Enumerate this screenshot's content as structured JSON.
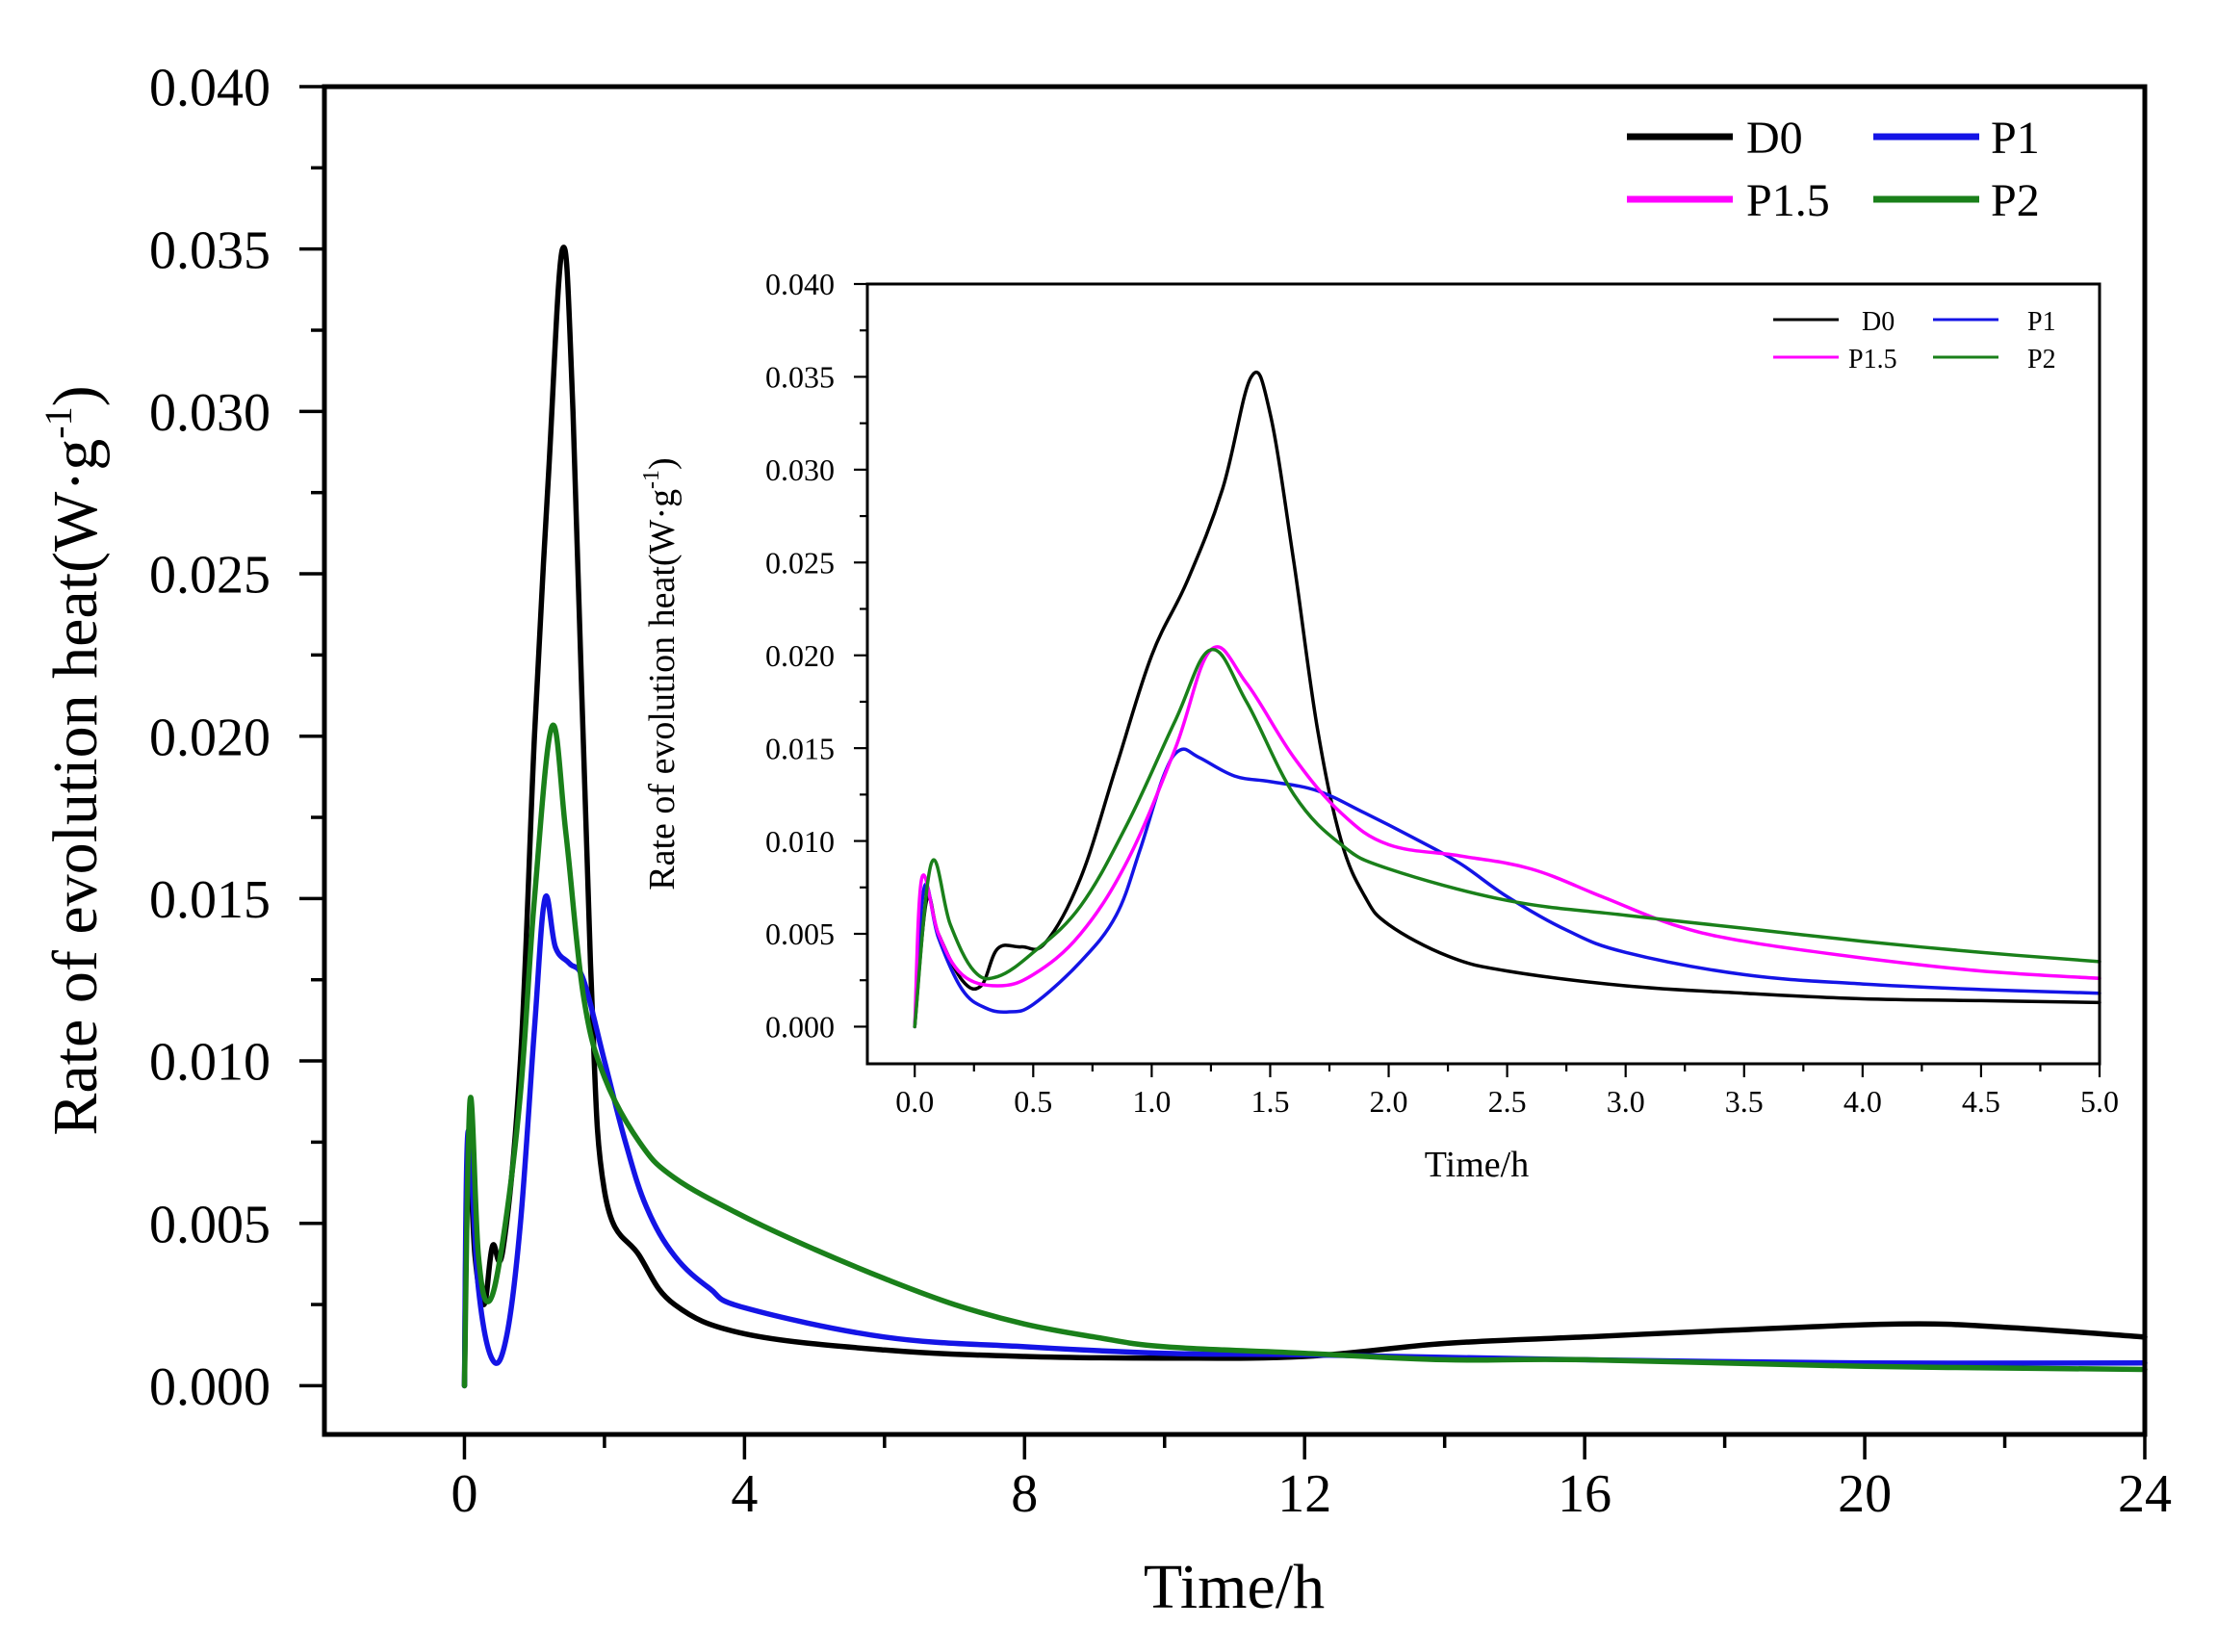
{
  "colors": {
    "D0": "#000000",
    "P1": "#1414e6",
    "P1.5": "#ff00ff",
    "P2": "#1a801a"
  },
  "main": {
    "xlabel": "Time/h",
    "ylabel_text": "Rate of evolution heat(W·g",
    "ylabel_sup": "-1",
    "ylabel_close": ")"
  },
  "inset": {
    "xlabel": "Time/h",
    "ylabel_text": "Rate of evolution heat(W·g",
    "ylabel_sup": "-1",
    "ylabel_close": ")"
  },
  "chart_data": [
    {
      "id": "main",
      "type": "line",
      "xlabel": "Time/h",
      "ylabel": "Rate of evolution heat(W·g-1)",
      "xlim": [
        -2.0,
        24
      ],
      "ylim": [
        -0.0015,
        0.04
      ],
      "xticks": [
        0,
        4,
        8,
        12,
        16,
        20,
        24
      ],
      "xtick_labels": [
        "0",
        "4",
        "8",
        "12",
        "16",
        "20",
        "24"
      ],
      "yticks": [
        0.0,
        0.005,
        0.01,
        0.015,
        0.02,
        0.025,
        0.03,
        0.035,
        0.04
      ],
      "ytick_labels": [
        "0.000",
        "0.005",
        "0.010",
        "0.015",
        "0.020",
        "0.025",
        "0.030",
        "0.035",
        "0.040"
      ],
      "legend": {
        "position": "top-right",
        "entries": [
          {
            "label": "D0",
            "series": "D0"
          },
          {
            "label": "P1",
            "series": "P1"
          },
          {
            "label": "P1.5",
            "series": "P1.5"
          },
          {
            "label": "P2",
            "series": "P2"
          }
        ]
      },
      "series": [
        {
          "name": "D0",
          "points": [
            [
              0,
              0
            ],
            [
              0.05,
              0.0075
            ],
            [
              0.15,
              0.004
            ],
            [
              0.28,
              0.0025
            ],
            [
              0.4,
              0.0043
            ],
            [
              0.55,
              0.0042
            ],
            [
              0.8,
              0.01
            ],
            [
              1.0,
              0.02
            ],
            [
              1.2,
              0.028
            ],
            [
              1.4,
              0.035
            ],
            [
              1.55,
              0.03
            ],
            [
              1.8,
              0.013
            ],
            [
              2.0,
              0.006
            ],
            [
              2.5,
              0.004
            ],
            [
              3.0,
              0.0025
            ],
            [
              4.0,
              0.0016
            ],
            [
              6.0,
              0.0011
            ],
            [
              8.0,
              0.0009
            ],
            [
              10.0,
              0.00085
            ],
            [
              12.0,
              0.0009
            ],
            [
              14.0,
              0.0013
            ],
            [
              16.0,
              0.0015
            ],
            [
              18.0,
              0.0017
            ],
            [
              20.5,
              0.0019
            ],
            [
              22.0,
              0.0018
            ],
            [
              24.0,
              0.0015
            ]
          ]
        },
        {
          "name": "P1",
          "points": [
            [
              0,
              0
            ],
            [
              0.05,
              0.0078
            ],
            [
              0.2,
              0.003
            ],
            [
              0.4,
              0.0008
            ],
            [
              0.6,
              0.0015
            ],
            [
              0.8,
              0.005
            ],
            [
              1.0,
              0.011
            ],
            [
              1.15,
              0.015
            ],
            [
              1.3,
              0.0135
            ],
            [
              1.5,
              0.013
            ],
            [
              1.7,
              0.0125
            ],
            [
              2.0,
              0.01
            ],
            [
              2.3,
              0.0075
            ],
            [
              2.6,
              0.0055
            ],
            [
              3.0,
              0.004
            ],
            [
              3.5,
              0.003
            ],
            [
              4.0,
              0.0024
            ],
            [
              6.0,
              0.0015
            ],
            [
              8.0,
              0.0012
            ],
            [
              10.0,
              0.001
            ],
            [
              12.0,
              0.00095
            ],
            [
              16.0,
              0.0008
            ],
            [
              20.0,
              0.0007
            ],
            [
              24.0,
              0.0007
            ]
          ]
        },
        {
          "name": "P2",
          "points": [
            [
              0,
              0
            ],
            [
              0.08,
              0.0088
            ],
            [
              0.2,
              0.004
            ],
            [
              0.35,
              0.0026
            ],
            [
              0.55,
              0.0045
            ],
            [
              0.8,
              0.009
            ],
            [
              1.0,
              0.015
            ],
            [
              1.25,
              0.0203
            ],
            [
              1.45,
              0.017
            ],
            [
              1.7,
              0.012
            ],
            [
              2.0,
              0.0095
            ],
            [
              2.5,
              0.0075
            ],
            [
              3.0,
              0.0064
            ],
            [
              4.0,
              0.0052
            ],
            [
              5.0,
              0.0042
            ],
            [
              6.0,
              0.0033
            ],
            [
              7.0,
              0.0025
            ],
            [
              8.0,
              0.0019
            ],
            [
              9.0,
              0.0015
            ],
            [
              10.0,
              0.0012
            ],
            [
              12.0,
              0.001
            ],
            [
              14.0,
              0.0008
            ],
            [
              16.0,
              0.0008
            ],
            [
              20.0,
              0.0006
            ],
            [
              24.0,
              0.0005
            ]
          ]
        }
      ]
    },
    {
      "id": "inset",
      "type": "line",
      "xlabel": "Time/h",
      "ylabel": "Rate of evolution heat(W·g-1)",
      "xlim": [
        -0.2,
        5.0
      ],
      "ylim": [
        -0.002,
        0.04
      ],
      "xticks": [
        0,
        0.5,
        1.0,
        1.5,
        2.0,
        2.5,
        3.0,
        3.5,
        4.0,
        4.5,
        5.0
      ],
      "xtick_labels": [
        "0.0",
        "0.5",
        "1.0",
        "1.5",
        "2.0",
        "2.5",
        "3.0",
        "3.5",
        "4.0",
        "4.5",
        "5.0"
      ],
      "yticks": [
        0.0,
        0.005,
        0.01,
        0.015,
        0.02,
        0.025,
        0.03,
        0.035,
        0.04
      ],
      "ytick_labels": [
        "0.000",
        "0.005",
        "0.010",
        "0.015",
        "0.020",
        "0.025",
        "0.030",
        "0.035",
        "0.040"
      ],
      "legend": {
        "position": "top-right",
        "entries": [
          {
            "label": "D0",
            "series": "D0"
          },
          {
            "label": "P1",
            "series": "P1"
          },
          {
            "label": "P1.5",
            "series": "P1.5"
          },
          {
            "label": "P2",
            "series": "P2"
          }
        ]
      },
      "series": [
        {
          "name": "D0",
          "points": [
            [
              0,
              0
            ],
            [
              0.05,
              0.0068
            ],
            [
              0.1,
              0.005
            ],
            [
              0.2,
              0.0025
            ],
            [
              0.28,
              0.0022
            ],
            [
              0.35,
              0.0042
            ],
            [
              0.45,
              0.0043
            ],
            [
              0.55,
              0.0045
            ],
            [
              0.7,
              0.008
            ],
            [
              0.85,
              0.014
            ],
            [
              1.0,
              0.02
            ],
            [
              1.15,
              0.024
            ],
            [
              1.3,
              0.029
            ],
            [
              1.42,
              0.035
            ],
            [
              1.5,
              0.033
            ],
            [
              1.6,
              0.025
            ],
            [
              1.7,
              0.016
            ],
            [
              1.8,
              0.01
            ],
            [
              1.9,
              0.007
            ],
            [
              2.0,
              0.0055
            ],
            [
              2.25,
              0.0038
            ],
            [
              2.5,
              0.003
            ],
            [
              3.0,
              0.0022
            ],
            [
              3.5,
              0.0018
            ],
            [
              4.0,
              0.0015
            ],
            [
              4.5,
              0.0014
            ],
            [
              5.0,
              0.0013
            ]
          ]
        },
        {
          "name": "P1",
          "points": [
            [
              0,
              0
            ],
            [
              0.04,
              0.0075
            ],
            [
              0.1,
              0.0048
            ],
            [
              0.2,
              0.002
            ],
            [
              0.3,
              0.001
            ],
            [
              0.4,
              0.0008
            ],
            [
              0.5,
              0.0012
            ],
            [
              0.7,
              0.0035
            ],
            [
              0.85,
              0.006
            ],
            [
              0.95,
              0.0095
            ],
            [
              1.05,
              0.0135
            ],
            [
              1.12,
              0.0149
            ],
            [
              1.2,
              0.0145
            ],
            [
              1.35,
              0.0135
            ],
            [
              1.5,
              0.0132
            ],
            [
              1.7,
              0.0127
            ],
            [
              1.9,
              0.0115
            ],
            [
              2.1,
              0.0102
            ],
            [
              2.3,
              0.0088
            ],
            [
              2.5,
              0.007
            ],
            [
              2.75,
              0.0052
            ],
            [
              3.0,
              0.004
            ],
            [
              3.5,
              0.0028
            ],
            [
              4.0,
              0.0023
            ],
            [
              4.5,
              0.002
            ],
            [
              5.0,
              0.0018
            ]
          ]
        },
        {
          "name": "P1.5",
          "points": [
            [
              0,
              0
            ],
            [
              0.03,
              0.008
            ],
            [
              0.1,
              0.005
            ],
            [
              0.2,
              0.0028
            ],
            [
              0.35,
              0.0022
            ],
            [
              0.5,
              0.0028
            ],
            [
              0.7,
              0.005
            ],
            [
              0.9,
              0.009
            ],
            [
              1.1,
              0.015
            ],
            [
              1.25,
              0.0203
            ],
            [
              1.4,
              0.0185
            ],
            [
              1.6,
              0.0145
            ],
            [
              1.8,
              0.0115
            ],
            [
              2.0,
              0.0098
            ],
            [
              2.3,
              0.0092
            ],
            [
              2.6,
              0.0085
            ],
            [
              2.9,
              0.007
            ],
            [
              3.2,
              0.0055
            ],
            [
              3.5,
              0.0046
            ],
            [
              4.0,
              0.0037
            ],
            [
              4.5,
              0.003
            ],
            [
              5.0,
              0.0026
            ]
          ]
        },
        {
          "name": "P2",
          "points": [
            [
              0,
              0
            ],
            [
              0.07,
              0.0088
            ],
            [
              0.15,
              0.0055
            ],
            [
              0.25,
              0.003
            ],
            [
              0.35,
              0.0027
            ],
            [
              0.5,
              0.004
            ],
            [
              0.7,
              0.0065
            ],
            [
              0.9,
              0.011
            ],
            [
              1.1,
              0.0165
            ],
            [
              1.25,
              0.0203
            ],
            [
              1.4,
              0.0175
            ],
            [
              1.6,
              0.0125
            ],
            [
              1.8,
              0.0098
            ],
            [
              2.0,
              0.0085
            ],
            [
              2.5,
              0.0068
            ],
            [
              3.0,
              0.006
            ],
            [
              3.5,
              0.0053
            ],
            [
              4.0,
              0.0046
            ],
            [
              4.5,
              0.004
            ],
            [
              5.0,
              0.0035
            ]
          ]
        }
      ]
    }
  ]
}
